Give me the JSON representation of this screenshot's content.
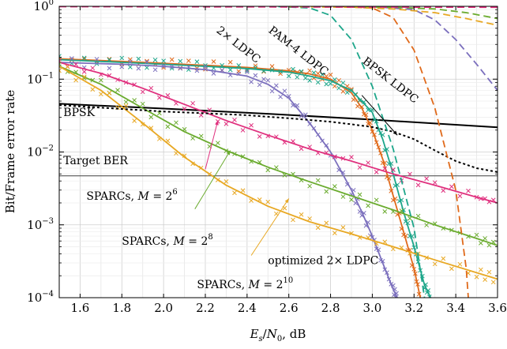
{
  "chart_data": {
    "type": "line",
    "xlabel": "E_s/N_0, dB",
    "ylabel": "Bit/Frame error rate",
    "xlim": [
      1.5,
      3.6
    ],
    "ylim": [
      0.0001,
      1
    ],
    "yscale": "log",
    "grid": true,
    "x_ticks": [
      "1.6",
      "1.8",
      "2.0",
      "2.2",
      "2.4",
      "2.6",
      "2.8",
      "3.0",
      "3.2",
      "3.4",
      "3.6"
    ],
    "y_ticks": [
      {
        "base": "10",
        "exp": "0"
      },
      {
        "base": "10",
        "exp": "−1"
      },
      {
        "base": "10",
        "exp": "−2"
      },
      {
        "base": "10",
        "exp": "−3"
      },
      {
        "base": "10",
        "exp": "−4"
      }
    ],
    "reference_lines": [
      {
        "label": "BPSK",
        "color": "#000000",
        "style": "solid",
        "points": [
          [
            1.5,
            0.046
          ],
          [
            2.0,
            0.0395
          ],
          [
            2.5,
            0.0335
          ],
          [
            3.0,
            0.0278
          ],
          [
            3.6,
            0.0218
          ]
        ]
      },
      {
        "label": "Target BER",
        "color": "#555555",
        "style": "solid",
        "points": [
          [
            1.5,
            0.0047
          ],
          [
            3.6,
            0.0047
          ]
        ]
      }
    ],
    "series": [
      {
        "name": "2× LDPC",
        "color": "#e06a1b",
        "style": "solid-markers",
        "points": [
          [
            1.5,
            0.19
          ],
          [
            1.8,
            0.175
          ],
          [
            2.0,
            0.165
          ],
          [
            2.2,
            0.155
          ],
          [
            2.4,
            0.145
          ],
          [
            2.6,
            0.13
          ],
          [
            2.7,
            0.118
          ],
          [
            2.8,
            0.1
          ],
          [
            2.9,
            0.065
          ],
          [
            2.95,
            0.04
          ],
          [
            3.0,
            0.02
          ],
          [
            3.05,
            0.008
          ],
          [
            3.1,
            0.0025
          ],
          [
            3.15,
            0.0008
          ],
          [
            3.2,
            0.00025
          ],
          [
            3.23,
            0.0001
          ]
        ]
      },
      {
        "name": "PAM-4 LDPC",
        "color": "#1da68a",
        "style": "solid-markers",
        "points": [
          [
            1.5,
            0.185
          ],
          [
            1.8,
            0.17
          ],
          [
            2.0,
            0.16
          ],
          [
            2.2,
            0.15
          ],
          [
            2.4,
            0.14
          ],
          [
            2.6,
            0.125
          ],
          [
            2.7,
            0.11
          ],
          [
            2.8,
            0.095
          ],
          [
            2.9,
            0.07
          ],
          [
            3.0,
            0.035
          ],
          [
            3.05,
            0.015
          ],
          [
            3.1,
            0.005
          ],
          [
            3.15,
            0.0015
          ],
          [
            3.2,
            0.0005
          ],
          [
            3.25,
            0.00015
          ],
          [
            3.28,
            0.0001
          ]
        ]
      },
      {
        "name": "optimized 2× LDPC",
        "color": "#7b6fbd",
        "style": "solid-markers",
        "points": [
          [
            1.5,
            0.17
          ],
          [
            1.8,
            0.16
          ],
          [
            2.0,
            0.15
          ],
          [
            2.2,
            0.135
          ],
          [
            2.4,
            0.11
          ],
          [
            2.5,
            0.085
          ],
          [
            2.6,
            0.055
          ],
          [
            2.7,
            0.025
          ],
          [
            2.8,
            0.01
          ],
          [
            2.9,
            0.003
          ],
          [
            2.95,
            0.0015
          ],
          [
            3.0,
            0.0007
          ],
          [
            3.05,
            0.0003
          ],
          [
            3.1,
            0.00013
          ],
          [
            3.12,
            0.0001
          ]
        ]
      },
      {
        "name": "SPARCs, M = 2^6",
        "color": "#e0307e",
        "style": "solid-markers",
        "points": [
          [
            1.5,
            0.17
          ],
          [
            1.7,
            0.12
          ],
          [
            1.9,
            0.075
          ],
          [
            2.1,
            0.045
          ],
          [
            2.3,
            0.027
          ],
          [
            2.5,
            0.017
          ],
          [
            2.7,
            0.011
          ],
          [
            2.9,
            0.0075
          ],
          [
            3.1,
            0.005
          ],
          [
            3.3,
            0.0035
          ],
          [
            3.5,
            0.0024
          ],
          [
            3.6,
            0.002
          ]
        ]
      },
      {
        "name": "SPARCs, M = 2^8",
        "color": "#6aab2e",
        "style": "solid-markers",
        "points": [
          [
            1.5,
            0.15
          ],
          [
            1.7,
            0.085
          ],
          [
            1.9,
            0.04
          ],
          [
            2.1,
            0.019
          ],
          [
            2.3,
            0.0105
          ],
          [
            2.5,
            0.0062
          ],
          [
            2.7,
            0.0039
          ],
          [
            2.9,
            0.0025
          ],
          [
            3.1,
            0.0016
          ],
          [
            3.3,
            0.001
          ],
          [
            3.5,
            0.00065
          ],
          [
            3.6,
            0.00052
          ]
        ]
      },
      {
        "name": "SPARCs, M = 2^10",
        "color": "#e8a823",
        "style": "solid-markers",
        "points": [
          [
            1.5,
            0.15
          ],
          [
            1.7,
            0.07
          ],
          [
            1.9,
            0.025
          ],
          [
            2.1,
            0.0085
          ],
          [
            2.3,
            0.0035
          ],
          [
            2.5,
            0.0018
          ],
          [
            2.7,
            0.0011
          ],
          [
            2.9,
            0.00075
          ],
          [
            3.1,
            0.0005
          ],
          [
            3.3,
            0.00033
          ],
          [
            3.5,
            0.00022
          ],
          [
            3.6,
            0.00018
          ]
        ]
      },
      {
        "name": "BPSK LDPC",
        "color": "#000000",
        "style": "dotted",
        "points": [
          [
            1.5,
            0.044
          ],
          [
            1.8,
            0.039
          ],
          [
            2.0,
            0.036
          ],
          [
            2.2,
            0.034
          ],
          [
            2.4,
            0.032
          ],
          [
            2.6,
            0.029
          ],
          [
            2.8,
            0.026
          ],
          [
            2.9,
            0.024
          ],
          [
            3.0,
            0.022
          ],
          [
            3.1,
            0.019
          ],
          [
            3.2,
            0.015
          ],
          [
            3.3,
            0.0105
          ],
          [
            3.4,
            0.0075
          ],
          [
            3.5,
            0.006
          ],
          [
            3.6,
            0.0053
          ]
        ]
      },
      {
        "name": "",
        "color": "#1da68a",
        "style": "dashed",
        "points": [
          [
            2.55,
            0.99
          ],
          [
            2.7,
            0.95
          ],
          [
            2.8,
            0.75
          ],
          [
            2.9,
            0.35
          ],
          [
            3.0,
            0.08
          ],
          [
            3.1,
            0.011
          ],
          [
            3.2,
            0.0009
          ],
          [
            3.25,
            0.0001
          ]
        ]
      },
      {
        "name": "",
        "color": "#e06a1b",
        "style": "dashed",
        "points": [
          [
            2.85,
            0.99
          ],
          [
            3.0,
            0.95
          ],
          [
            3.1,
            0.7
          ],
          [
            3.2,
            0.25
          ],
          [
            3.3,
            0.04
          ],
          [
            3.4,
            0.003
          ],
          [
            3.45,
            0.00025
          ],
          [
            3.46,
            0.0001
          ]
        ]
      },
      {
        "name": "",
        "color": "#7b6fbd",
        "style": "dashed",
        "points": [
          [
            3.0,
            0.99
          ],
          [
            3.2,
            0.9
          ],
          [
            3.3,
            0.65
          ],
          [
            3.4,
            0.35
          ],
          [
            3.5,
            0.16
          ],
          [
            3.6,
            0.07
          ]
        ]
      },
      {
        "name": "",
        "color": "#6aab2e",
        "style": "dashed",
        "points": [
          [
            2.9,
            0.99
          ],
          [
            3.1,
            0.97
          ],
          [
            3.3,
            0.92
          ],
          [
            3.45,
            0.82
          ],
          [
            3.6,
            0.68
          ]
        ]
      },
      {
        "name": "",
        "color": "#e8a823",
        "style": "dashed",
        "points": [
          [
            2.6,
            0.99
          ],
          [
            2.9,
            0.97
          ],
          [
            3.1,
            0.92
          ],
          [
            3.3,
            0.82
          ],
          [
            3.45,
            0.68
          ],
          [
            3.6,
            0.55
          ]
        ]
      },
      {
        "name": "",
        "color": "#e0307e",
        "style": "dashed",
        "points": [
          [
            1.5,
            0.99
          ],
          [
            3.6,
            0.97
          ]
        ]
      }
    ],
    "annotations": [
      {
        "text": "2× LDPC",
        "x": 2.25,
        "y": 0.45,
        "color": "#e06a1b",
        "rotate": 38
      },
      {
        "text": "PAM-4 LDPC",
        "x": 2.5,
        "y": 0.45,
        "color": "#1da68a",
        "rotate": 38
      },
      {
        "text": "BPSK LDPC",
        "x": 2.95,
        "y": 0.17,
        "color": "#000000",
        "rotate": 38
      },
      {
        "text": "BPSK",
        "x": 1.52,
        "y": 0.031,
        "color": "#000000"
      },
      {
        "text": "Target BER",
        "x": 1.52,
        "y": 0.0068,
        "color": "#000000"
      },
      {
        "text": "SPARCs, M = 2^6",
        "x": 1.63,
        "y": 0.0022,
        "color": "#e0307e"
      },
      {
        "text": "SPARCs, M = 2^8",
        "x": 1.8,
        "y": 0.00053,
        "color": "#6aab2e"
      },
      {
        "text": "SPARCs, M = 2^10",
        "x": 2.16,
        "y": 0.000135,
        "color": "#e8a823"
      },
      {
        "text": "optimized 2× LDPC",
        "x": 2.5,
        "y": 0.00029,
        "color": "#7b6fbd"
      }
    ]
  }
}
